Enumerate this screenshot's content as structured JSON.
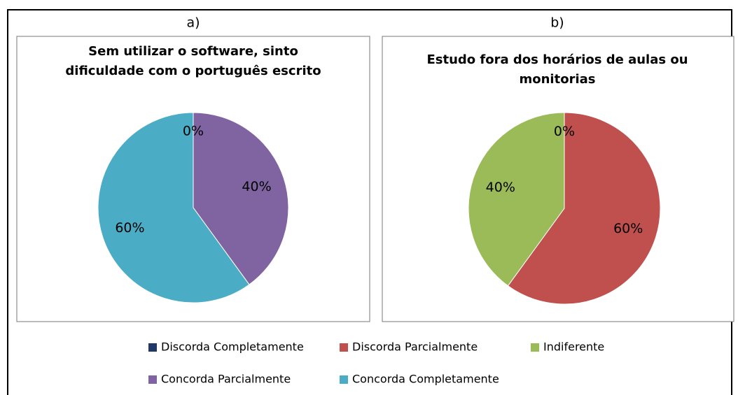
{
  "chart_data": [
    {
      "type": "pie",
      "panel": "a)",
      "title": [
        "Sem utilizar o software, sinto",
        "dificuldade com o português escrito"
      ],
      "categories": [
        "Indiferente",
        "Concorda Parcialmente",
        "Concorda Completamente"
      ],
      "values": [
        0,
        40,
        60
      ],
      "value_labels": [
        "0%",
        "40%",
        "60%"
      ],
      "colors": [
        "#9bbb59",
        "#8064a2",
        "#4bacc6"
      ]
    },
    {
      "type": "pie",
      "panel": "b)",
      "title": [
        "Estudo fora dos horários de aulas ou",
        "monitorias"
      ],
      "categories": [
        "Discorda Completamente",
        "Discorda Parcialmente",
        "Indiferente"
      ],
      "values": [
        0,
        60,
        40
      ],
      "value_labels": [
        "0%",
        "60%",
        "40%"
      ],
      "colors": [
        "#1f3864",
        "#c0504d",
        "#9bbb59"
      ]
    }
  ],
  "legend": [
    {
      "name": "Discorda Completamente",
      "color": "#1f3864"
    },
    {
      "name": "Discorda Parcialmente",
      "color": "#c0504d"
    },
    {
      "name": "Indiferente",
      "color": "#9bbb59"
    },
    {
      "name": "Concorda Parcialmente",
      "color": "#8064a2"
    },
    {
      "name": "Concorda Completamente",
      "color": "#4bacc6"
    }
  ]
}
